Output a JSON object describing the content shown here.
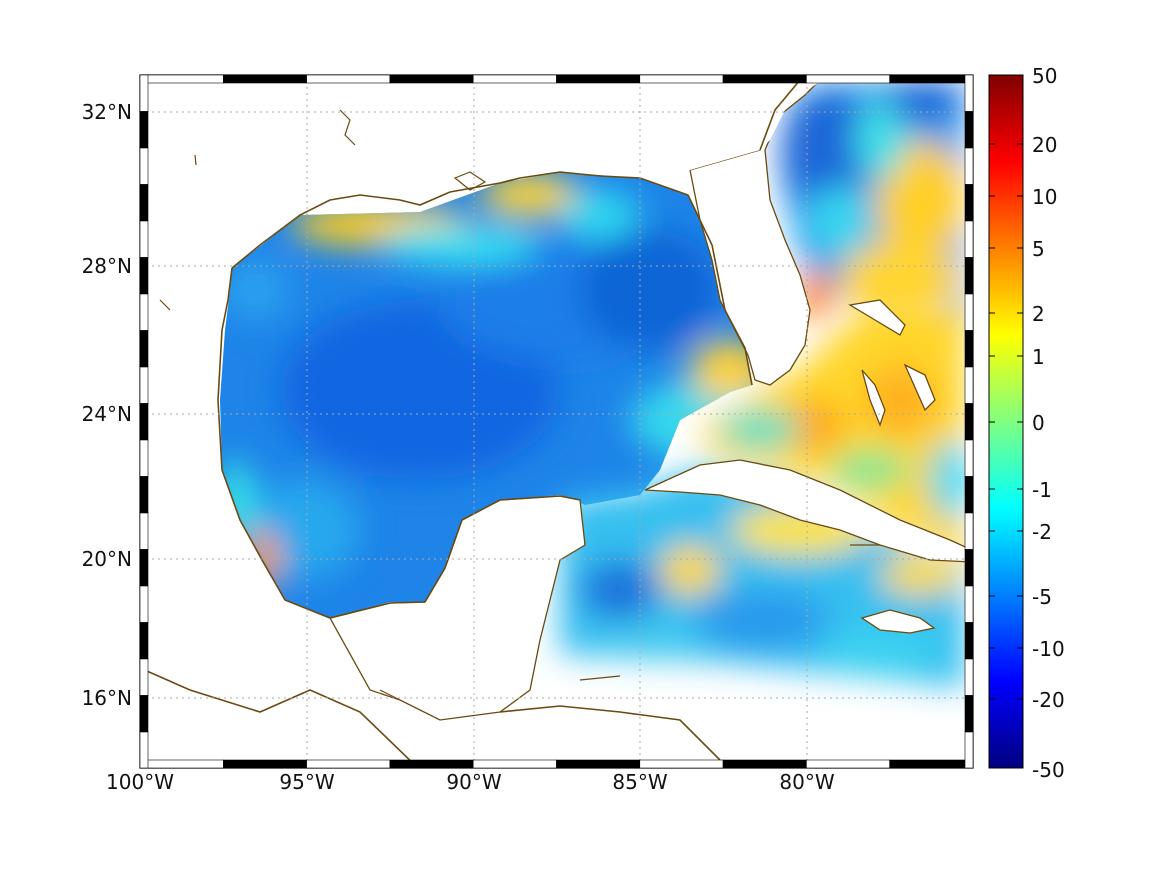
{
  "map": {
    "x_ticks": [
      "100°W",
      "95°W",
      "90°W",
      "85°W",
      "80°W"
    ],
    "y_ticks": [
      "32°N",
      "28°N",
      "24°N",
      "20°N",
      "16°N"
    ],
    "lon_range": [
      -100,
      -75
    ],
    "lat_range": [
      14.3,
      33
    ],
    "land_color": "#ffffff",
    "coast_color": "#6b4a10",
    "grid": true,
    "grid_style": "dotted",
    "projection": "mercator",
    "frame": "alternating-black-white"
  },
  "colorbar": {
    "tick_labels": [
      "50",
      "20",
      "10",
      "5",
      "2",
      "1",
      "0",
      "-1",
      "-2",
      "-5",
      "-10",
      "-20",
      "-50"
    ],
    "colormap": "jet",
    "placement": "right",
    "scale": "symmetric-log"
  },
  "chart_data": {
    "type": "heatmap",
    "xlabel": "",
    "ylabel": "",
    "xlim": [
      -100,
      -75
    ],
    "ylim": [
      14.3,
      33
    ],
    "value_range": [
      -50,
      50
    ],
    "color_ticks": [
      50,
      20,
      10,
      5,
      2,
      1,
      0,
      -1,
      -2,
      -5,
      -10,
      -20,
      -50
    ],
    "regions": [
      {
        "region": "central Gulf of Mexico",
        "value": -6
      },
      {
        "region": "northern Gulf shelf (Louisiana-Texas)",
        "value": 2
      },
      {
        "region": "Mississippi delta",
        "value": 1.5
      },
      {
        "region": "western Gulf coast near 20°N",
        "value": 3
      },
      {
        "region": "northeast Gulf",
        "value": -3
      },
      {
        "region": "Straits of Florida",
        "value": 2
      },
      {
        "region": "east of Florida near 27.5°N",
        "value": 7
      },
      {
        "region": "north of Cuba near 23.5°N",
        "value": 4
      },
      {
        "region": "western Atlantic near 30°N 78°W",
        "value": 3
      },
      {
        "region": "Atlantic off Georgia",
        "value": -5
      },
      {
        "region": "western Caribbean",
        "value": -2
      },
      {
        "region": "south of Cuba",
        "value": 1.5
      },
      {
        "region": "Yucatán Channel",
        "value": -2
      }
    ]
  }
}
